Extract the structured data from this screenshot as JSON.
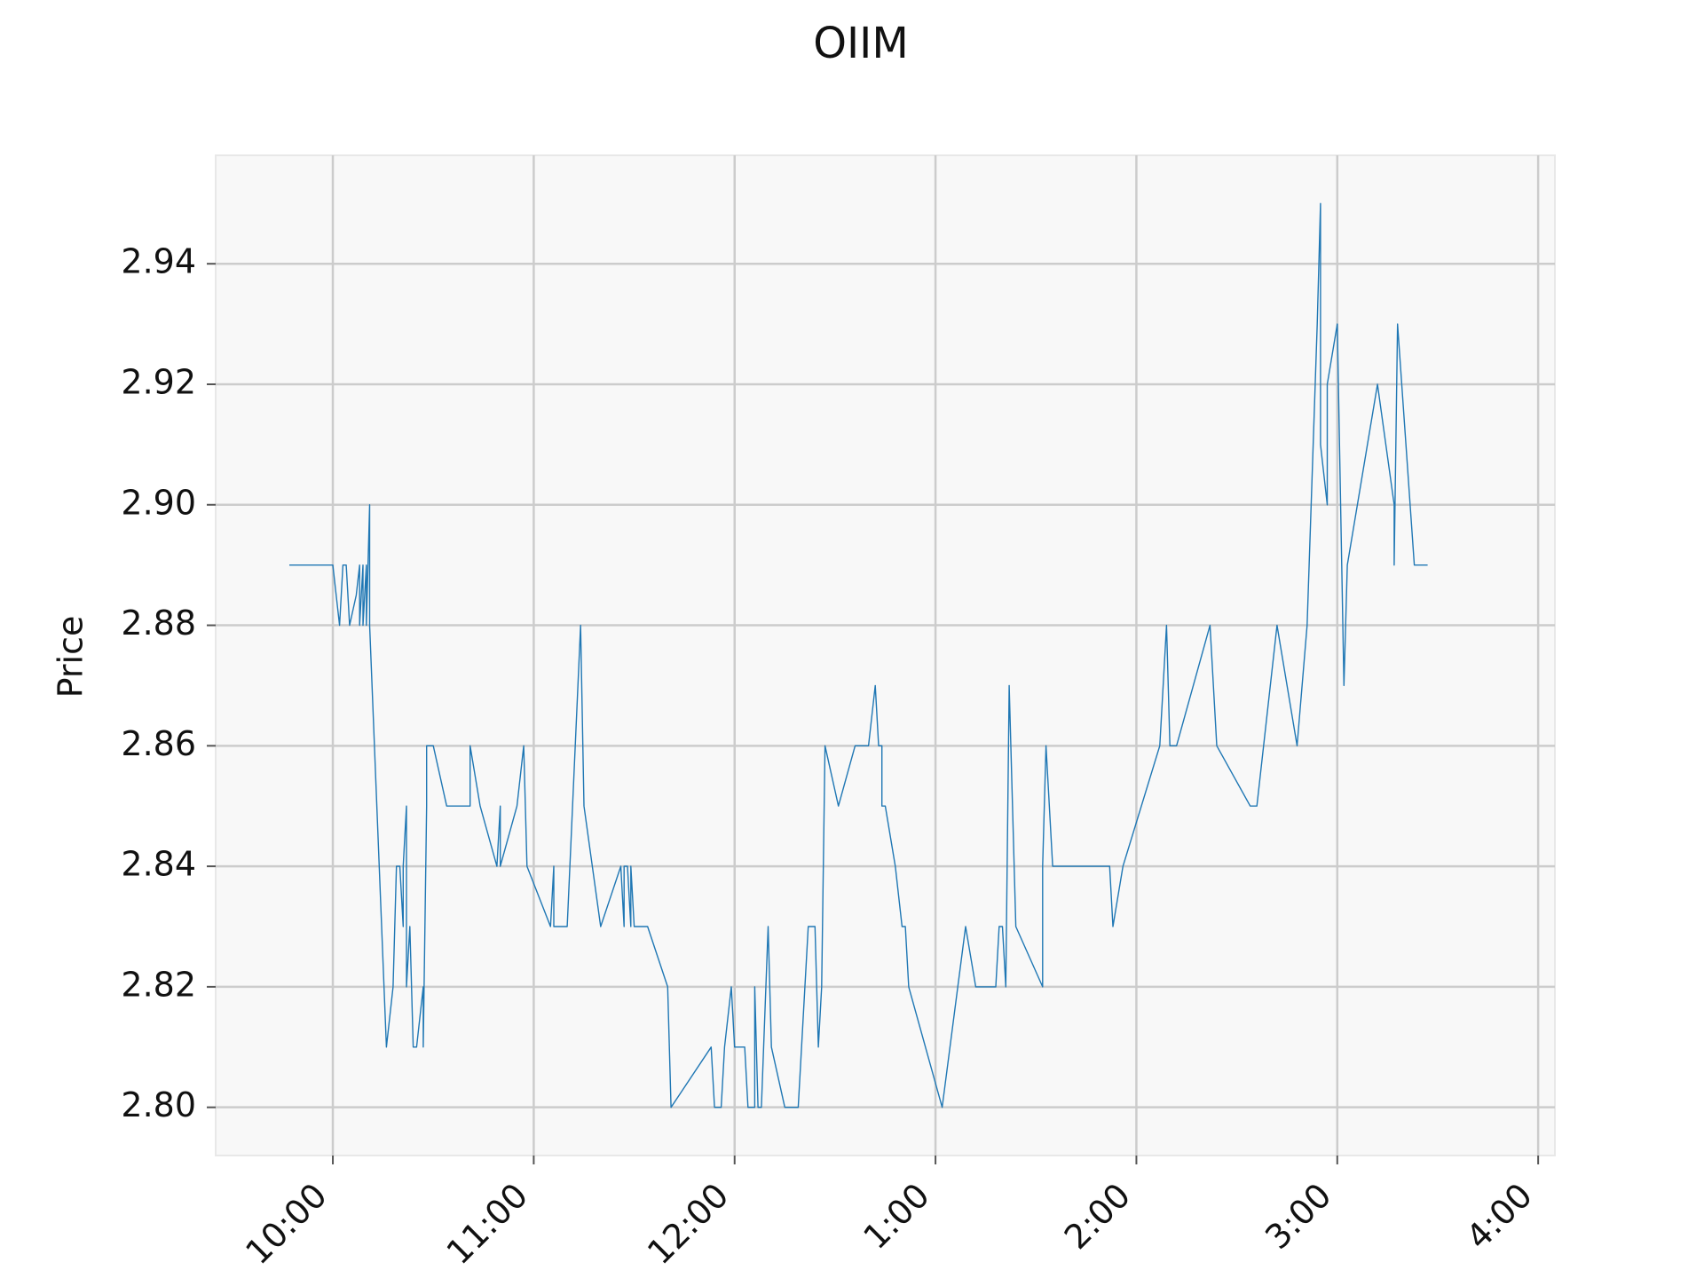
{
  "chart_data": {
    "type": "line",
    "title": "OIIM",
    "xlabel": "",
    "ylabel": "Price",
    "grid": true,
    "legend": "none",
    "line_color": "#1f77b4",
    "background_color": "#f8f8f8",
    "grid_color": "#cccccc",
    "xlim": [
      "9:25",
      "4:05"
    ],
    "ylim": [
      2.792,
      2.958
    ],
    "x_ticks": [
      {
        "t": "10:00",
        "label": "10:00"
      },
      {
        "t": "11:00",
        "label": "11:00"
      },
      {
        "t": "12:00",
        "label": "12:00"
      },
      {
        "t": "1:00",
        "label": "1:00"
      },
      {
        "t": "2:00",
        "label": "2:00"
      },
      {
        "t": "3:00",
        "label": "3:00"
      },
      {
        "t": "4:00",
        "label": "4:00"
      }
    ],
    "y_ticks": [
      {
        "v": 2.8,
        "label": "2.80"
      },
      {
        "v": 2.82,
        "label": "2.82"
      },
      {
        "v": 2.84,
        "label": "2.84"
      },
      {
        "v": 2.86,
        "label": "2.86"
      },
      {
        "v": 2.88,
        "label": "2.88"
      },
      {
        "v": 2.9,
        "label": "2.90"
      },
      {
        "v": 2.92,
        "label": "2.92"
      },
      {
        "v": 2.94,
        "label": "2.94"
      }
    ],
    "series": [
      {
        "points": [
          [
            "9:47",
            2.89
          ],
          [
            "10:00",
            2.89
          ],
          [
            "10:02",
            2.88
          ],
          [
            "10:03",
            2.89
          ],
          [
            "10:04",
            2.89
          ],
          [
            "10:05",
            2.88
          ],
          [
            "10:07",
            2.885
          ],
          [
            "10:08",
            2.89
          ],
          [
            "10:08",
            2.88
          ],
          [
            "10:09",
            2.89
          ],
          [
            "10:09",
            2.88
          ],
          [
            "10:10",
            2.89
          ],
          [
            "10:10",
            2.88
          ],
          [
            "10:11",
            2.9
          ],
          [
            "10:11",
            2.88
          ],
          [
            "10:16",
            2.81
          ],
          [
            "10:18",
            2.82
          ],
          [
            "10:19",
            2.84
          ],
          [
            "10:20",
            2.84
          ],
          [
            "10:21",
            2.83
          ],
          [
            "10:21",
            2.84
          ],
          [
            "10:22",
            2.85
          ],
          [
            "10:22",
            2.82
          ],
          [
            "10:23",
            2.83
          ],
          [
            "10:24",
            2.81
          ],
          [
            "10:25",
            2.81
          ],
          [
            "10:27",
            2.82
          ],
          [
            "10:27",
            2.81
          ],
          [
            "10:28",
            2.85
          ],
          [
            "10:28",
            2.86
          ],
          [
            "10:30",
            2.86
          ],
          [
            "10:34",
            2.85
          ],
          [
            "10:39",
            2.85
          ],
          [
            "10:41",
            2.85
          ],
          [
            "10:41",
            2.86
          ],
          [
            "10:44",
            2.85
          ],
          [
            "10:49",
            2.84
          ],
          [
            "10:50",
            2.85
          ],
          [
            "10:50",
            2.84
          ],
          [
            "10:55",
            2.85
          ],
          [
            "10:57",
            2.86
          ],
          [
            "10:58",
            2.84
          ],
          [
            "11:05",
            2.83
          ],
          [
            "11:06",
            2.84
          ],
          [
            "11:06",
            2.83
          ],
          [
            "11:10",
            2.83
          ],
          [
            "11:14",
            2.88
          ],
          [
            "11:15",
            2.85
          ],
          [
            "11:20",
            2.83
          ],
          [
            "11:26",
            2.84
          ],
          [
            "11:27",
            2.83
          ],
          [
            "11:27",
            2.84
          ],
          [
            "11:28",
            2.84
          ],
          [
            "11:29",
            2.83
          ],
          [
            "11:29",
            2.84
          ],
          [
            "11:30",
            2.83
          ],
          [
            "11:34",
            2.83
          ],
          [
            "11:40",
            2.82
          ],
          [
            "11:41",
            2.8
          ],
          [
            "11:53",
            2.81
          ],
          [
            "11:54",
            2.8
          ],
          [
            "11:56",
            2.8
          ],
          [
            "11:57",
            2.81
          ],
          [
            "11:59",
            2.82
          ],
          [
            "12:00",
            2.81
          ],
          [
            "12:03",
            2.81
          ],
          [
            "12:04",
            2.8
          ],
          [
            "12:06",
            2.8
          ],
          [
            "12:06",
            2.82
          ],
          [
            "12:07",
            2.8
          ],
          [
            "12:08",
            2.8
          ],
          [
            "12:10",
            2.83
          ],
          [
            "12:11",
            2.81
          ],
          [
            "12:15",
            2.8
          ],
          [
            "12:19",
            2.8
          ],
          [
            "12:22",
            2.83
          ],
          [
            "12:24",
            2.83
          ],
          [
            "12:25",
            2.81
          ],
          [
            "12:26",
            2.82
          ],
          [
            "12:27",
            2.86
          ],
          [
            "12:31",
            2.85
          ],
          [
            "12:36",
            2.86
          ],
          [
            "12:40",
            2.86
          ],
          [
            "12:42",
            2.87
          ],
          [
            "12:43",
            2.86
          ],
          [
            "12:44",
            2.86
          ],
          [
            "12:44",
            2.85
          ],
          [
            "12:45",
            2.85
          ],
          [
            "12:48",
            2.84
          ],
          [
            "12:50",
            2.83
          ],
          [
            "12:51",
            2.83
          ],
          [
            "12:52",
            2.82
          ],
          [
            "1:02",
            2.8
          ],
          [
            "1:09",
            2.83
          ],
          [
            "1:12",
            2.82
          ],
          [
            "1:18",
            2.82
          ],
          [
            "1:19",
            2.83
          ],
          [
            "1:20",
            2.83
          ],
          [
            "1:21",
            2.82
          ],
          [
            "1:22",
            2.87
          ],
          [
            "1:24",
            2.83
          ],
          [
            "1:32",
            2.82
          ],
          [
            "1:32",
            2.84
          ],
          [
            "1:33",
            2.86
          ],
          [
            "1:35",
            2.84
          ],
          [
            "1:52",
            2.84
          ],
          [
            "1:53",
            2.83
          ],
          [
            "1:56",
            2.84
          ],
          [
            "2:07",
            2.86
          ],
          [
            "2:09",
            2.88
          ],
          [
            "2:10",
            2.86
          ],
          [
            "2:12",
            2.86
          ],
          [
            "2:22",
            2.88
          ],
          [
            "2:24",
            2.86
          ],
          [
            "2:34",
            2.85
          ],
          [
            "2:36",
            2.85
          ],
          [
            "2:42",
            2.88
          ],
          [
            "2:48",
            2.86
          ],
          [
            "2:51",
            2.88
          ],
          [
            "2:54",
            2.93
          ],
          [
            "2:55",
            2.95
          ],
          [
            "2:55",
            2.91
          ],
          [
            "2:57",
            2.9
          ],
          [
            "2:57",
            2.92
          ],
          [
            "3:00",
            2.93
          ],
          [
            "3:02",
            2.87
          ],
          [
            "3:02",
            2.87
          ],
          [
            "3:03",
            2.89
          ],
          [
            "3:12",
            2.92
          ],
          [
            "3:17",
            2.9
          ],
          [
            "3:17",
            2.89
          ],
          [
            "3:18",
            2.93
          ],
          [
            "3:23",
            2.89
          ],
          [
            "3:27",
            2.89
          ]
        ]
      }
    ]
  }
}
